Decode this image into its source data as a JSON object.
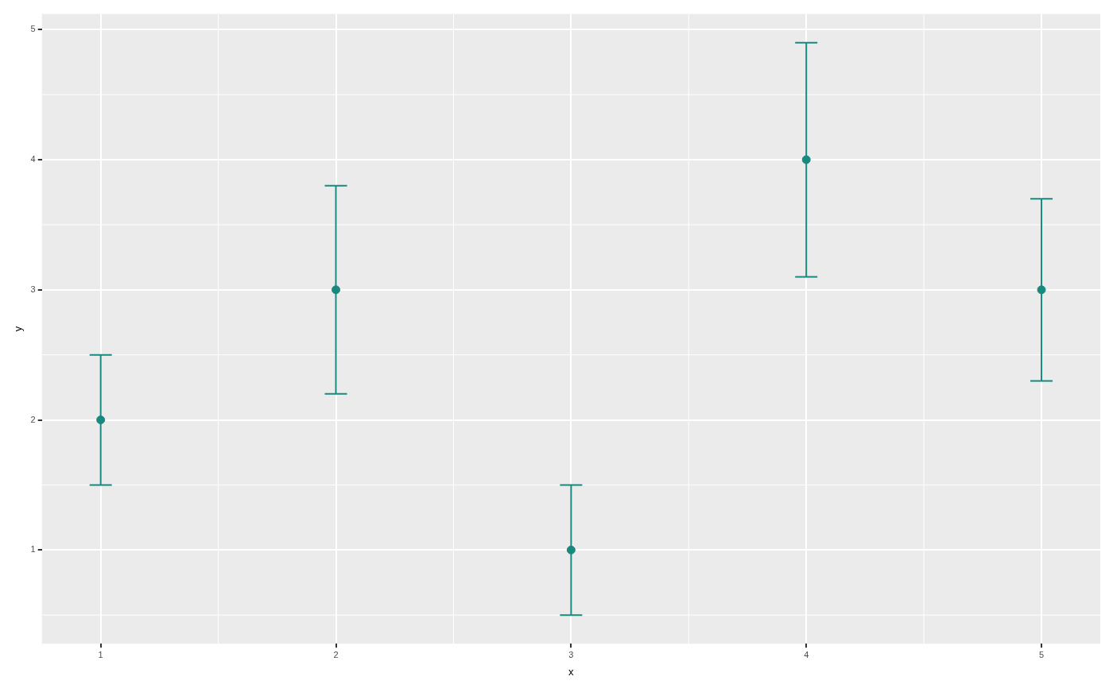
{
  "chart_data": {
    "type": "scatter",
    "xlabel": "x",
    "ylabel": "y",
    "x": [
      1,
      2,
      3,
      4,
      5
    ],
    "series": [
      {
        "color": "#178a80",
        "values": [
          2,
          3,
          1,
          4,
          3
        ],
        "errors": [
          0.5,
          0.8,
          0.5,
          0.9,
          0.7
        ]
      }
    ],
    "xlim": [
      0.75,
      5.25
    ],
    "ylim": [
      0.28,
      5.12
    ],
    "xticks": [
      1,
      2,
      3,
      4,
      5
    ],
    "yticks": [
      1,
      2,
      3,
      4,
      5
    ],
    "grid": true,
    "legend": false,
    "marker": "circle"
  }
}
